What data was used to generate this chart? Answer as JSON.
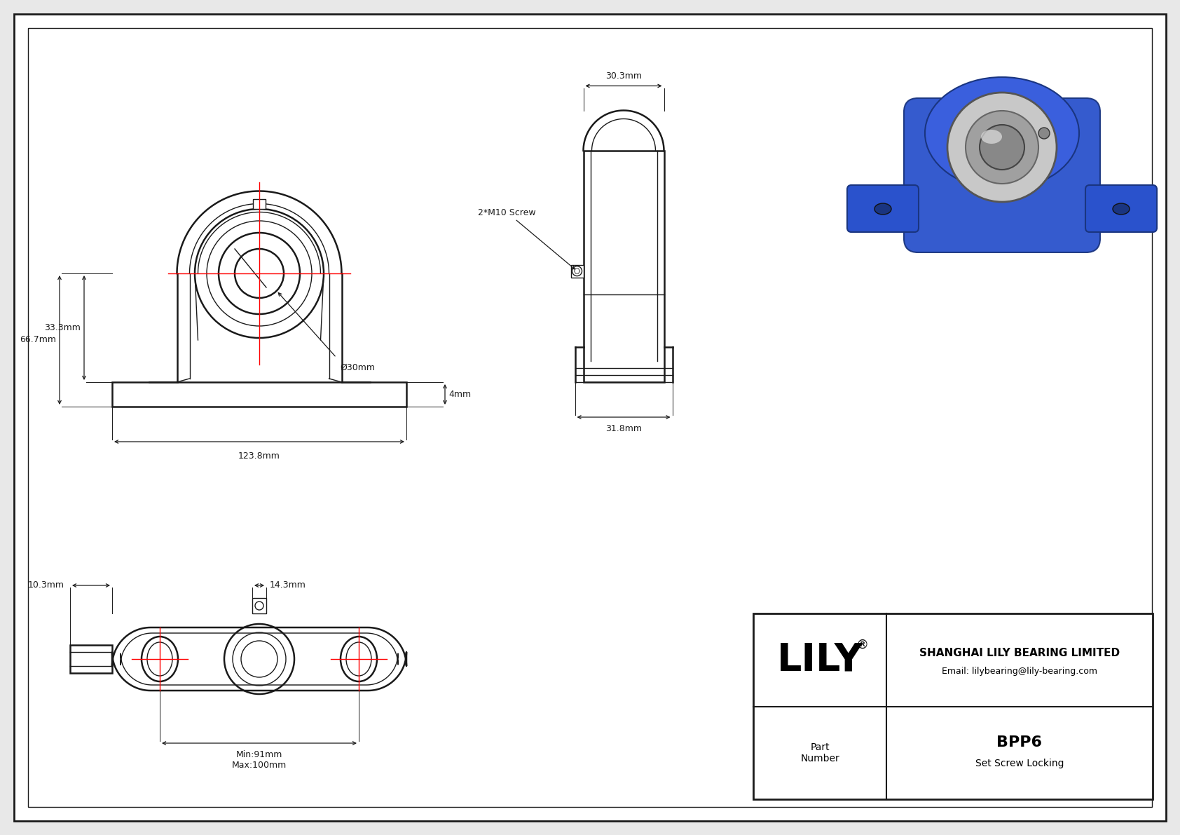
{
  "bg_color": "#e8e8e8",
  "drawing_bg": "#ffffff",
  "line_color": "#1a1a1a",
  "dim_color": "#1a1a1a",
  "red_line_color": "#ff0000",
  "company": "SHANGHAI LILY BEARING LIMITED",
  "email": "Email: lilybearing@lily-bearing.com",
  "part_number": "BPP6",
  "locking": "Set Screw Locking",
  "dim_667": "66.7mm",
  "dim_333": "33.3mm",
  "dim_1238": "123.8mm",
  "dim_30": "Ø30mm",
  "dim_4": "4mm",
  "dim_303": "30.3mm",
  "dim_318": "31.8mm",
  "dim_2m10": "2*M10 Screw",
  "dim_103": "10.3mm",
  "dim_143": "14.3mm",
  "dim_min91": "Min:91mm",
  "dim_max100": "Max:100mm"
}
